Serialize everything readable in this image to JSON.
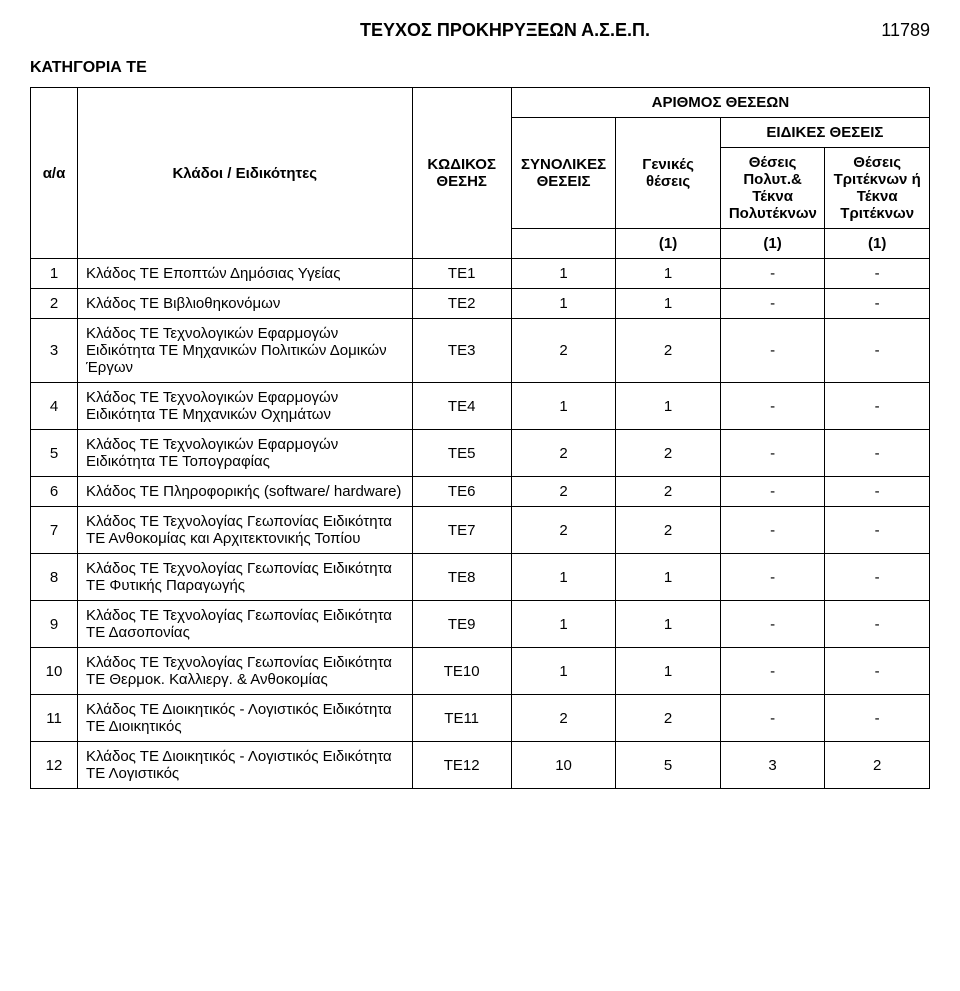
{
  "header": {
    "title": "ΤΕΥΧΟΣ ΠΡΟΚΗΡΥΞΕΩΝ Α.Σ.Ε.Π.",
    "page_number": "11789"
  },
  "category_label": "ΚΑΤΗΓΟΡΙΑ ΤΕ",
  "table": {
    "columns": {
      "aa": "α/α",
      "kladoi": "Κλάδοι / Ειδικότητες",
      "code": "ΚΩΔΙΚΟΣ ΘΕΣΗΣ",
      "arithmos": "ΑΡΙΘΜΟΣ ΘΕΣΕΩΝ",
      "synolikes": "ΣΥΝΟΛΙΚΕΣ ΘΕΣΕΙΣ",
      "genikes": "Γενικές θέσεις",
      "eidikes": "ΕΙΔΙΚΕΣ ΘΕΣΕΙΣ",
      "polyt": "Θέσεις Πολυτ.& Τέκνα Πολυτέκνων",
      "trit": "Θέσεις Τριτέκνων ή Τέκνα Τριτέκνων",
      "one": "(1)"
    },
    "rows": [
      {
        "aa": "1",
        "desc": "Κλάδος ΤΕ Εποπτών Δημόσιας Υγείας",
        "code": "ΤΕ1",
        "syn": "1",
        "gen": "1",
        "pol": "-",
        "tri": "-"
      },
      {
        "aa": "2",
        "desc": "Κλάδος ΤΕ Βιβλιοθηκονόμων",
        "code": "ΤΕ2",
        "syn": "1",
        "gen": "1",
        "pol": "-",
        "tri": "-"
      },
      {
        "aa": "3",
        "desc": "Κλάδος ΤΕ Τεχνολογικών Εφαρμογών Ειδικότητα ΤΕ Μηχανικών Πολιτικών Δομικών Έργων",
        "code": "ΤΕ3",
        "syn": "2",
        "gen": "2",
        "pol": "-",
        "tri": "-"
      },
      {
        "aa": "4",
        "desc": "Κλάδος ΤΕ Τεχνολογικών Εφαρμογών Ειδικότητα ΤΕ Μηχανικών Οχημάτων",
        "code": "ΤΕ4",
        "syn": "1",
        "gen": "1",
        "pol": "-",
        "tri": "-"
      },
      {
        "aa": "5",
        "desc": "Κλάδος ΤΕ Τεχνολογικών Εφαρμογών Ειδικότητα ΤΕ Τοπογραφίας",
        "code": "ΤΕ5",
        "syn": "2",
        "gen": "2",
        "pol": "-",
        "tri": "-"
      },
      {
        "aa": "6",
        "desc": "Κλάδος ΤΕ Πληροφορικής (software/ hardware)",
        "code": "ΤΕ6",
        "syn": "2",
        "gen": "2",
        "pol": "-",
        "tri": "-"
      },
      {
        "aa": "7",
        "desc": "Κλάδος ΤΕ Τεχνολογίας Γεωπονίας Ειδικότητα ΤΕ Ανθοκομίας και Αρχιτεκτονικής Τοπίου",
        "code": "ΤΕ7",
        "syn": "2",
        "gen": "2",
        "pol": "-",
        "tri": "-"
      },
      {
        "aa": "8",
        "desc": "Κλάδος ΤΕ Τεχνολογίας Γεωπονίας Ειδικότητα ΤΕ Φυτικής Παραγωγής",
        "code": "ΤΕ8",
        "syn": "1",
        "gen": "1",
        "pol": "-",
        "tri": "-"
      },
      {
        "aa": "9",
        "desc": "Κλάδος ΤΕ Τεχνολογίας Γεωπονίας Ειδικότητα ΤΕ Δασοπονίας",
        "code": "ΤΕ9",
        "syn": "1",
        "gen": "1",
        "pol": "-",
        "tri": "-"
      },
      {
        "aa": "10",
        "desc": "Κλάδος ΤΕ Τεχνολογίας Γεωπονίας Ειδικότητα ΤΕ Θερμοκ. Καλλιεργ. & Ανθοκομίας",
        "code": "ΤΕ10",
        "syn": "1",
        "gen": "1",
        "pol": "-",
        "tri": "-"
      },
      {
        "aa": "11",
        "desc": "Κλάδος ΤΕ Διοικητικός - Λογιστικός Ειδικότητα ΤΕ Διοικητικός",
        "code": "ΤΕ11",
        "syn": "2",
        "gen": "2",
        "pol": "-",
        "tri": "-"
      },
      {
        "aa": "12",
        "desc": "Κλάδος ΤΕ Διοικητικός - Λογιστικός Ειδικότητα ΤΕ Λογιστικός",
        "code": "ΤΕ12",
        "syn": "10",
        "gen": "5",
        "pol": "3",
        "tri": "2"
      }
    ]
  }
}
